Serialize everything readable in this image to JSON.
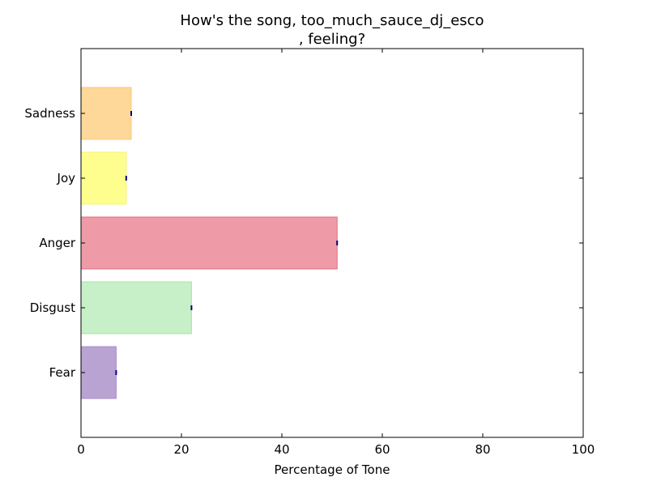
{
  "chart_data": {
    "type": "bar",
    "orientation": "horizontal",
    "title_lines": [
      "How's the song, too_much_sauce_dj_esco",
      ", feeling?"
    ],
    "xlabel": "Percentage of Tone",
    "ylabel": "",
    "xlim": [
      0,
      100
    ],
    "xticks": [
      "0",
      "20",
      "40",
      "60",
      "80",
      "100"
    ],
    "categories": [
      "Fear",
      "Disgust",
      "Anger",
      "Joy",
      "Sadness"
    ],
    "values": [
      7,
      22,
      51,
      9,
      10
    ],
    "bar_colors": [
      "#b9a3d2",
      "#c7f0c8",
      "#ee9ba7",
      "#fefe8f",
      "#fed898"
    ],
    "edge_colors": [
      "#a98bc8",
      "#a8e3a8",
      "#e06a7c",
      "#f4f466",
      "#f9c77a"
    ],
    "error_marker_color": "#00007f",
    "grid": false,
    "legend": "none"
  }
}
